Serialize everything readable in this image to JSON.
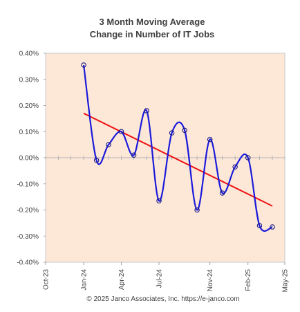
{
  "chart_data": {
    "type": "line",
    "title_line1": "3 Month Moving Average",
    "title_line2": "Change in Number of IT Jobs",
    "xlabel": "",
    "ylabel": "",
    "x_ticks": [
      "Oct-23",
      "Jan-24",
      "Apr-24",
      "Jul-24",
      "Nov-24",
      "Feb-25",
      "May-25"
    ],
    "x_tick_dates": [
      "2023-10-01",
      "2024-01-01",
      "2024-04-01",
      "2024-07-01",
      "2024-11-01",
      "2025-02-01",
      "2025-05-01"
    ],
    "xlim": [
      "2023-10-01",
      "2025-05-01"
    ],
    "y_ticks": [
      "0.40%",
      "0.30%",
      "0.20%",
      "0.10%",
      "0.00%",
      "-0.10%",
      "-0.20%",
      "-0.30%",
      "-0.40%"
    ],
    "ylim": [
      -0.4,
      0.4
    ],
    "series": [
      {
        "style": "smoothed line with circle markers",
        "color": "#1a1adb",
        "points": [
          {
            "x": "2024-01-01",
            "y": 0.355
          },
          {
            "x": "2024-02-01",
            "y": -0.01
          },
          {
            "x": "2024-03-01",
            "y": 0.05
          },
          {
            "x": "2024-04-01",
            "y": 0.1
          },
          {
            "x": "2024-05-01",
            "y": 0.01
          },
          {
            "x": "2024-06-01",
            "y": 0.18
          },
          {
            "x": "2024-07-01",
            "y": -0.165
          },
          {
            "x": "2024-08-01",
            "y": 0.095
          },
          {
            "x": "2024-09-01",
            "y": 0.105
          },
          {
            "x": "2024-10-01",
            "y": -0.2
          },
          {
            "x": "2024-11-01",
            "y": 0.07
          },
          {
            "x": "2024-12-01",
            "y": -0.135
          },
          {
            "x": "2025-01-01",
            "y": -0.035
          },
          {
            "x": "2025-02-01",
            "y": 0.0
          },
          {
            "x": "2025-03-01",
            "y": -0.26
          },
          {
            "x": "2025-04-01",
            "y": -0.265
          }
        ]
      }
    ],
    "trendline": {
      "color": "#ee1111",
      "start": {
        "x": "2024-01-01",
        "y": 0.17
      },
      "end": {
        "x": "2025-04-01",
        "y": -0.185
      }
    },
    "plot_background": "#fde8d8",
    "grid": false,
    "legend": "none"
  },
  "footer": "© 2025 Janco Associates, Inc. https://e-janco.com"
}
